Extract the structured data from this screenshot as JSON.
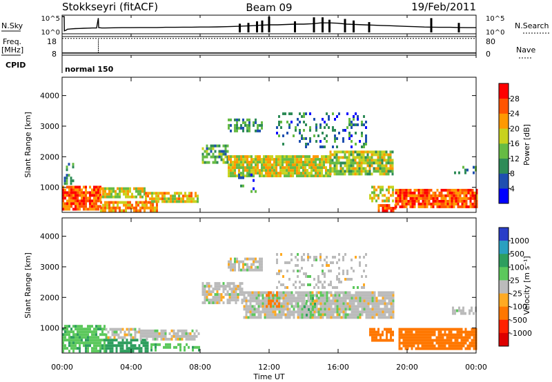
{
  "header": {
    "station": "Stokkseyri (fitACF)",
    "beam": "Beam 09",
    "date": "19/Feb/2011"
  },
  "panels": {
    "nsky": {
      "label": "N.Sky",
      "left_top": "10^5",
      "left_bottom": "10^0",
      "right_top": "10^5",
      "right_bottom": "10^0",
      "right_label": "N.Search",
      "trace": {
        "t": [
          0.0,
          0.12,
          0.13,
          0.25,
          0.3,
          0.5,
          0.75,
          1.0,
          1.25,
          1.5,
          1.75,
          2.0,
          2.1,
          2.12,
          2.3,
          2.5,
          3.0,
          3.5,
          4.0,
          4.5,
          5.0,
          5.5,
          6.0,
          6.5,
          7.0,
          7.5,
          8.0,
          8.5,
          9.0,
          9.5,
          10.0,
          10.5,
          11.0,
          11.5,
          12.0,
          12.5,
          13.0,
          13.5,
          14.0,
          14.5,
          15.0,
          15.5,
          16.0,
          16.5,
          17.0,
          17.5,
          18.0,
          18.5,
          19.0,
          19.5,
          20.0,
          20.5,
          21.0,
          21.5,
          22.0,
          22.5,
          23.0,
          23.5,
          24.0
        ],
        "level": [
          1.0,
          1.0,
          0.1,
          0.15,
          0.2,
          0.22,
          0.24,
          0.25,
          0.26,
          0.27,
          0.28,
          0.28,
          0.9,
          0.3,
          0.28,
          0.28,
          0.29,
          0.3,
          0.3,
          0.31,
          0.31,
          0.31,
          0.32,
          0.32,
          0.33,
          0.33,
          0.34,
          0.34,
          0.35,
          0.36,
          0.38,
          0.4,
          0.42,
          0.45,
          0.48,
          0.48,
          0.5,
          0.52,
          0.52,
          0.55,
          0.6,
          0.6,
          0.58,
          0.52,
          0.5,
          0.48,
          0.46,
          0.44,
          0.42,
          0.4,
          0.38,
          0.36,
          0.34,
          0.33,
          0.32,
          0.32,
          0.31,
          0.3,
          0.3
        ]
      },
      "spikes": [
        {
          "t": 10.3,
          "level": 0.55
        },
        {
          "t": 10.8,
          "level": 0.6
        },
        {
          "t": 11.3,
          "level": 0.7
        },
        {
          "t": 11.6,
          "level": 0.75
        },
        {
          "t": 12.0,
          "level": 1.0
        },
        {
          "t": 13.5,
          "level": 0.7
        },
        {
          "t": 14.6,
          "level": 0.95
        },
        {
          "t": 15.1,
          "level": 0.95
        },
        {
          "t": 15.5,
          "level": 0.8
        },
        {
          "t": 16.4,
          "level": 0.85
        },
        {
          "t": 16.9,
          "level": 0.75
        },
        {
          "t": 17.8,
          "level": 0.65
        },
        {
          "t": 21.4,
          "level": 0.9
        },
        {
          "t": 23.0,
          "level": 0.6
        }
      ]
    },
    "freq": {
      "label_top": "Freq.",
      "label_unit": "[MHz]",
      "left_top": "18",
      "left_bottom": "8",
      "right_top": "80",
      "right_bottom": "0",
      "right_label": "Nave",
      "freq_level": 0.05,
      "nave_level": 0.97
    },
    "cpid": {
      "label": "CPID",
      "mode": "normal 150"
    }
  },
  "time_axis": {
    "label": "Time UT",
    "range_hours": [
      0,
      24
    ],
    "ticks": [
      "00:00",
      "04:00",
      "08:00",
      "12:00",
      "16:00",
      "20:00",
      "00:00"
    ],
    "tick_hours": [
      0,
      4,
      8,
      12,
      16,
      20,
      24
    ]
  },
  "range_axis": {
    "label": "Slant Range [km]",
    "range_km": [
      180,
      4600
    ],
    "ticks": [
      "1000",
      "2000",
      "3000",
      "4000"
    ],
    "tick_values": [
      1000,
      2000,
      3000,
      4000
    ]
  },
  "power_scale": {
    "label": "Power [dB]",
    "ticks": [
      "4",
      "8",
      "12",
      "16",
      "20",
      "24",
      "28"
    ],
    "colors": [
      "#0000ff",
      "#1f4fb0",
      "#2e8b57",
      "#66bb44",
      "#c8d21e",
      "#ff9900",
      "#ff5500",
      "#ff0000"
    ]
  },
  "velocity_scale": {
    "label": "Velocity [m s⁻¹]",
    "ticks": [
      "1000",
      "500",
      "100",
      "25",
      "-25",
      "-100",
      "-500",
      "-1000"
    ],
    "colors": [
      "#2a3ec8",
      "#2aa0c0",
      "#2e9e5e",
      "#5cc85c",
      "#bbbbbb",
      "#ffaa22",
      "#ff7700",
      "#ff2200",
      "#dd0000"
    ]
  },
  "chart_data": {
    "type": "heatmap",
    "title": "Stokkseyri (fitACF) Beam 09 19/Feb/2011",
    "xlabel": "Time UT",
    "ylabel": "Slant Range [km]",
    "xlim_hours": [
      0,
      24
    ],
    "ylim_km": [
      180,
      4600
    ],
    "power_regions": [
      {
        "t0": 0.0,
        "t1": 2.2,
        "r0": 250,
        "r1": 1050,
        "value_db": 26,
        "density": 0.85
      },
      {
        "t0": 2.2,
        "t1": 4.8,
        "r0": 650,
        "r1": 1000,
        "value_db": 18,
        "density": 0.8
      },
      {
        "t0": 2.2,
        "t1": 5.5,
        "r0": 250,
        "r1": 550,
        "value_db": 22,
        "density": 0.8
      },
      {
        "t0": 4.8,
        "t1": 7.9,
        "r0": 550,
        "r1": 850,
        "value_db": 20,
        "density": 0.8
      },
      {
        "t0": 0.1,
        "t1": 0.6,
        "r0": 1100,
        "r1": 1800,
        "value_db": 10,
        "density": 0.35
      },
      {
        "t0": 8.1,
        "t1": 9.6,
        "r0": 1800,
        "r1": 2400,
        "value_db": 12,
        "density": 0.6
      },
      {
        "t0": 9.6,
        "t1": 15.5,
        "r0": 1350,
        "r1": 2050,
        "value_db": 18,
        "density": 0.9
      },
      {
        "t0": 15.5,
        "t1": 19.2,
        "r0": 1400,
        "r1": 2200,
        "value_db": 16,
        "density": 0.85
      },
      {
        "t0": 9.6,
        "t1": 11.6,
        "r0": 2850,
        "r1": 3250,
        "value_db": 10,
        "density": 0.55
      },
      {
        "t0": 12.4,
        "t1": 17.6,
        "r0": 2300,
        "r1": 3450,
        "value_db": 8,
        "density": 0.22
      },
      {
        "t0": 10.2,
        "t1": 11.2,
        "r0": 850,
        "r1": 1450,
        "value_db": 8,
        "density": 0.25
      },
      {
        "t0": 17.8,
        "t1": 19.2,
        "r0": 550,
        "r1": 1050,
        "value_db": 18,
        "density": 0.6
      },
      {
        "t0": 18.3,
        "t1": 19.3,
        "r0": 250,
        "r1": 450,
        "value_db": 26,
        "density": 0.85
      },
      {
        "t0": 19.3,
        "t1": 24.0,
        "r0": 350,
        "r1": 950,
        "value_db": 26,
        "density": 0.9
      },
      {
        "t0": 22.6,
        "t1": 24.0,
        "r0": 1450,
        "r1": 1700,
        "value_db": 10,
        "density": 0.5
      }
    ],
    "velocity_regions": [
      {
        "t0": 0.0,
        "t1": 2.5,
        "r0": 250,
        "r1": 1100,
        "value_ms": 80,
        "density": 0.75
      },
      {
        "t0": 2.5,
        "t1": 5.0,
        "r0": 250,
        "r1": 650,
        "value_ms": 150,
        "density": 0.7
      },
      {
        "t0": 2.5,
        "t1": 4.5,
        "r0": 650,
        "r1": 1000,
        "value_ms": 0,
        "density": 0.7
      },
      {
        "t0": 4.5,
        "t1": 7.9,
        "r0": 600,
        "r1": 950,
        "value_ms": 0,
        "density": 0.85
      },
      {
        "t0": 5.0,
        "t1": 8.0,
        "r0": 250,
        "r1": 500,
        "value_ms": 80,
        "density": 0.45
      },
      {
        "t0": 8.1,
        "t1": 10.5,
        "r0": 1800,
        "r1": 2500,
        "value_ms": 0,
        "density": 0.75
      },
      {
        "t0": 10.5,
        "t1": 19.2,
        "r0": 1300,
        "r1": 2200,
        "value_ms": 0,
        "density": 0.9
      },
      {
        "t0": 9.6,
        "t1": 11.6,
        "r0": 2850,
        "r1": 3300,
        "value_ms": 0,
        "density": 0.7
      },
      {
        "t0": 12.4,
        "t1": 17.6,
        "r0": 2300,
        "r1": 3450,
        "value_ms": 0,
        "density": 0.25
      },
      {
        "t0": 11.8,
        "t1": 12.6,
        "r0": 1600,
        "r1": 2200,
        "value_ms": -150,
        "density": 0.4
      },
      {
        "t0": 14.0,
        "t1": 14.8,
        "r0": 1300,
        "r1": 2100,
        "value_ms": 80,
        "density": 0.3
      },
      {
        "t0": 17.8,
        "t1": 19.2,
        "r0": 550,
        "r1": 1000,
        "value_ms": -200,
        "density": 0.8
      },
      {
        "t0": 19.5,
        "t1": 24.0,
        "r0": 300,
        "r1": 1000,
        "value_ms": -200,
        "density": 0.9
      },
      {
        "t0": 22.6,
        "t1": 24.0,
        "r0": 1450,
        "r1": 1700,
        "value_ms": 0,
        "density": 0.6
      }
    ]
  }
}
